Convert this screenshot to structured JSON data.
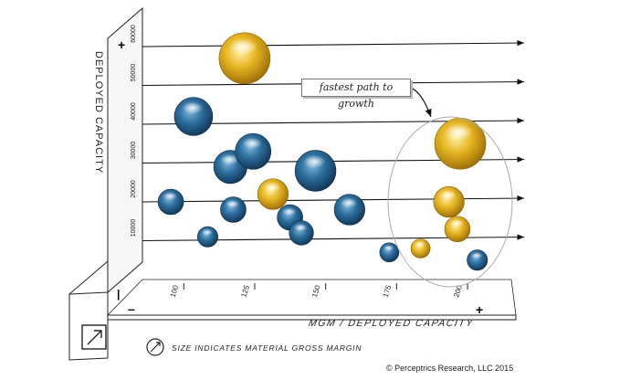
{
  "chart_data": {
    "type": "scatter",
    "style": "3d-perspective-bubble",
    "xlabel": "MGM / DEPLOYED CAPACITY",
    "ylabel": "DEPLOYED CAPACITY",
    "x_ticks": [
      "100",
      "125",
      "150",
      "175",
      "200"
    ],
    "y_ticks": [
      "10000",
      "20000",
      "30000",
      "40000",
      "50000",
      "60000"
    ],
    "xlim": [
      88,
      218
    ],
    "ylim": [
      0,
      64000
    ],
    "x_axis_signs": {
      "min": "–",
      "max": "+"
    },
    "y_axis_signs": {
      "min": "–",
      "max": "+"
    },
    "annotation": "fastest path to growth",
    "size_note": "SIZE INDICATES MATERIAL GROSS MARGIN",
    "colors": {
      "blue": "#1e5a8a",
      "gold": "#e0b020"
    },
    "series": [
      {
        "color": "blue",
        "points": [
          {
            "x": 98,
            "y": 20000,
            "size": 1.0
          },
          {
            "x": 106,
            "y": 42000,
            "size": 1.5
          },
          {
            "x": 111,
            "y": 11000,
            "size": 0.8
          },
          {
            "x": 120,
            "y": 18000,
            "size": 1.0
          },
          {
            "x": 119,
            "y": 29000,
            "size": 1.3
          },
          {
            "x": 127,
            "y": 33000,
            "size": 1.4
          },
          {
            "x": 140,
            "y": 16000,
            "size": 1.0
          },
          {
            "x": 144,
            "y": 12000,
            "size": 0.95
          },
          {
            "x": 149,
            "y": 28000,
            "size": 1.6
          },
          {
            "x": 161,
            "y": 18000,
            "size": 1.2
          },
          {
            "x": 175,
            "y": 7000,
            "size": 0.75
          },
          {
            "x": 206,
            "y": 5000,
            "size": 0.8
          }
        ]
      },
      {
        "color": "gold",
        "points": [
          {
            "x": 124,
            "y": 57000,
            "size": 2.0
          },
          {
            "x": 134,
            "y": 22000,
            "size": 1.2
          },
          {
            "x": 186,
            "y": 8000,
            "size": 0.75
          },
          {
            "x": 196,
            "y": 20000,
            "size": 1.2
          },
          {
            "x": 199,
            "y": 13000,
            "size": 1.0
          },
          {
            "x": 200,
            "y": 35000,
            "size": 2.0
          }
        ]
      }
    ]
  },
  "copyright": "© Perceptrics Research, LLC 2015"
}
